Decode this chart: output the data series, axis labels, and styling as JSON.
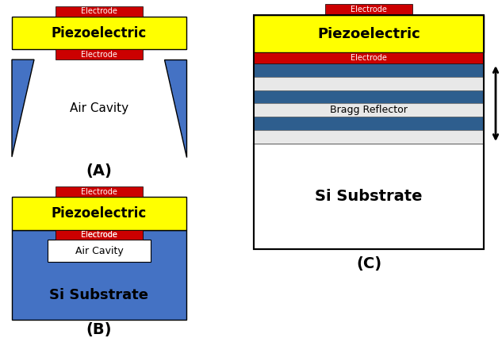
{
  "background_color": "#ffffff",
  "electrode_color": "#cc0000",
  "piezo_color": "#ffff00",
  "substrate_color": "#4472c4",
  "bragg_dark": "#2e5e8e",
  "bragg_light": "#e8e8e8",
  "air_cavity_color": "#ffffff",
  "electrode_label": "Electrode",
  "piezo_label": "Piezoelectric",
  "air_cavity_label_A": "Air Cavity",
  "air_cavity_label_B": "Air Cavity",
  "substrate_label_B": "Si Substrate",
  "substrate_label_C": "Si Substrate",
  "bragg_label": "Bragg Reflector",
  "label_A": "(A)",
  "label_B": "(B)",
  "label_C": "(C)"
}
